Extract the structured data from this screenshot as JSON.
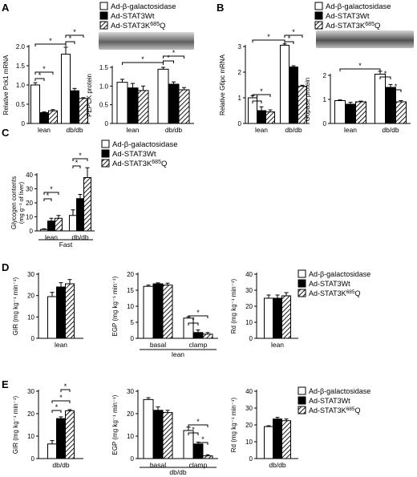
{
  "figure": {
    "legend_entries": [
      "Ad-β-galactosidase",
      "Ad-STAT3Wt",
      "Ad-STAT3K685Q"
    ],
    "legend_base": "Ad-STAT3K",
    "legend_sup": "685",
    "legend_tail": "Q",
    "sig_mark": "*",
    "colors": {
      "series0": "#ffffff",
      "series1": "#000000",
      "series2": "hatch"
    }
  },
  "chart_data": [
    {
      "panel": "A",
      "type": "bar",
      "title": "",
      "ylabel": "Relative Pck1 mRNA",
      "xlabel": "",
      "categories": [
        "lean",
        "db/db"
      ],
      "ylim": [
        0,
        2
      ],
      "yticks": [
        "0",
        "0.5",
        "1.0",
        "1.5",
        "2.0"
      ],
      "series": [
        {
          "name": "Ad-β-galactosidase",
          "values": [
            1.0,
            1.8
          ],
          "errors": [
            0.06,
            0.18
          ]
        },
        {
          "name": "Ad-STAT3Wt",
          "values": [
            0.28,
            0.85
          ],
          "errors": [
            0.02,
            0.06
          ]
        },
        {
          "name": "Ad-STAT3K685Q",
          "values": [
            0.33,
            0.65
          ],
          "errors": [
            0.03,
            0.02
          ]
        }
      ]
    },
    {
      "panel": "A-right",
      "type": "bar",
      "title": "",
      "ylabel": "PEPCK protein",
      "xlabel": "",
      "categories": [
        "lean",
        "db/db"
      ],
      "ylim": [
        0,
        1.5
      ],
      "yticks": [
        "0",
        "0.5",
        "1.0",
        "1.5"
      ],
      "series": [
        {
          "name": "Ad-β-galactosidase",
          "values": [
            1.1,
            1.45
          ],
          "errors": [
            0.08,
            0.05
          ]
        },
        {
          "name": "Ad-STAT3Wt",
          "values": [
            0.95,
            1.05
          ],
          "errors": [
            0.12,
            0.06
          ]
        },
        {
          "name": "Ad-STAT3K685Q",
          "values": [
            0.88,
            0.9
          ],
          "errors": [
            0.12,
            0.06
          ]
        }
      ]
    },
    {
      "panel": "B",
      "type": "bar",
      "title": "",
      "ylabel": "Relative G6pc mRNA",
      "xlabel": "",
      "categories": [
        "lean",
        "db/db"
      ],
      "ylim": [
        0,
        3
      ],
      "yticks": [
        "0",
        "1",
        "2",
        "3"
      ],
      "series": [
        {
          "name": "Ad-β-galactosidase",
          "values": [
            1.0,
            3.05
          ],
          "errors": [
            0.08,
            0.05
          ]
        },
        {
          "name": "Ad-STAT3Wt",
          "values": [
            0.5,
            2.2
          ],
          "errors": [
            0.15,
            0.05
          ]
        },
        {
          "name": "Ad-STAT3K685Q",
          "values": [
            0.45,
            1.45
          ],
          "errors": [
            0.08,
            0.04
          ]
        }
      ]
    },
    {
      "panel": "B-right",
      "type": "bar",
      "title": "",
      "ylabel": "G6pase protein",
      "xlabel": "",
      "categories": [
        "lean",
        "db/db"
      ],
      "ylim": [
        0,
        2
      ],
      "yticks": [
        "0",
        "1",
        "2"
      ],
      "series": [
        {
          "name": "Ad-β-galactosidase",
          "values": [
            0.95,
            2.05
          ],
          "errors": [
            0.03,
            0.12
          ]
        },
        {
          "name": "Ad-STAT3Wt",
          "values": [
            0.8,
            1.5
          ],
          "errors": [
            0.08,
            0.12
          ]
        },
        {
          "name": "Ad-STAT3K685Q",
          "values": [
            0.9,
            0.9
          ],
          "errors": [
            0.03,
            0.05
          ]
        }
      ]
    },
    {
      "panel": "C",
      "type": "bar",
      "title": "",
      "ylabel": "Glycogen contents",
      "ylabel2": "(mg g⁻¹ of liver)",
      "xlabel": "Fast",
      "categories": [
        "lean",
        "db/db"
      ],
      "ylim": [
        0,
        40
      ],
      "yticks": [
        "0",
        "10",
        "20",
        "30",
        "40"
      ],
      "series": [
        {
          "name": "Ad-β-galactosidase",
          "values": [
            1,
            11
          ],
          "errors": [
            0.5,
            4
          ]
        },
        {
          "name": "Ad-STAT3Wt",
          "values": [
            7,
            23
          ],
          "errors": [
            2,
            3
          ]
        },
        {
          "name": "Ad-STAT3K685Q",
          "values": [
            9,
            38
          ],
          "errors": [
            2,
            7
          ]
        }
      ]
    },
    {
      "panel": "D",
      "type": "bar",
      "title": "",
      "ylabel": "GIR (mg kg⁻¹ min⁻¹)",
      "xlabel": "lean",
      "categories": [
        ""
      ],
      "ylim": [
        0,
        30
      ],
      "yticks": [
        "0",
        "10",
        "20",
        "30"
      ],
      "series": [
        {
          "name": "Ad-β-galactosidase",
          "values": [
            19.5
          ],
          "errors": [
            2.0
          ]
        },
        {
          "name": "Ad-STAT3Wt",
          "values": [
            24
          ],
          "errors": [
            2.0
          ]
        },
        {
          "name": "Ad-STAT3K685Q",
          "values": [
            25.5
          ],
          "errors": [
            2.0
          ]
        }
      ]
    },
    {
      "panel": "D-mid",
      "type": "bar",
      "title": "",
      "ylabel": "EGP (mg kg⁻¹ min⁻¹)",
      "xlabel": "lean",
      "categories": [
        "basal",
        "clamp"
      ],
      "ylim": [
        0,
        20
      ],
      "yticks": [
        "0",
        "5",
        "10",
        "15",
        "20"
      ],
      "series": [
        {
          "name": "Ad-β-galactosidase",
          "values": [
            16.2,
            6.3
          ],
          "errors": [
            0.4,
            0.4
          ]
        },
        {
          "name": "Ad-STAT3Wt",
          "values": [
            17,
            1.8
          ],
          "errors": [
            0.3,
            0.8
          ]
        },
        {
          "name": "Ad-STAT3K685Q",
          "values": [
            16.6,
            1.3
          ],
          "errors": [
            0.6,
            0.5
          ]
        }
      ]
    },
    {
      "panel": "D-right",
      "type": "bar",
      "title": "",
      "ylabel": "Rd (mg kg⁻¹ min⁻¹)",
      "xlabel": "lean",
      "categories": [
        ""
      ],
      "ylim": [
        0,
        40
      ],
      "yticks": [
        "0",
        "10",
        "20",
        "30",
        "40"
      ],
      "series": [
        {
          "name": "Ad-β-galactosidase",
          "values": [
            25
          ],
          "errors": [
            2
          ]
        },
        {
          "name": "Ad-STAT3Wt",
          "values": [
            25
          ],
          "errors": [
            2
          ]
        },
        {
          "name": "Ad-STAT3K685Q",
          "values": [
            26.5
          ],
          "errors": [
            2
          ]
        }
      ]
    },
    {
      "panel": "E",
      "type": "bar",
      "title": "",
      "ylabel": "GIR (mg kg⁻¹ min⁻¹)",
      "xlabel": "db/db",
      "categories": [
        ""
      ],
      "ylim": [
        0,
        30
      ],
      "yticks": [
        "0",
        "10",
        "20",
        "30"
      ],
      "series": [
        {
          "name": "Ad-β-galactosidase",
          "values": [
            6.5
          ],
          "errors": [
            1.5
          ]
        },
        {
          "name": "Ad-STAT3Wt",
          "values": [
            17.8
          ],
          "errors": [
            0.8
          ]
        },
        {
          "name": "Ad-STAT3K685Q",
          "values": [
            21.3
          ],
          "errors": [
            0.5
          ]
        }
      ]
    },
    {
      "panel": "E-mid",
      "type": "bar",
      "title": "",
      "ylabel": "EGP (mg kg⁻¹ min⁻¹)",
      "xlabel": "db/db",
      "categories": [
        "basal",
        "clamp"
      ],
      "ylim": [
        0,
        30
      ],
      "yticks": [
        "0",
        "10",
        "20",
        "30"
      ],
      "series": [
        {
          "name": "Ad-β-galactosidase",
          "values": [
            26.3,
            12.5
          ],
          "errors": [
            0.8,
            1.5
          ]
        },
        {
          "name": "Ad-STAT3Wt",
          "values": [
            21.5,
            6.5
          ],
          "errors": [
            1.5,
            0.8
          ]
        },
        {
          "name": "Ad-STAT3K685Q",
          "values": [
            20.5,
            1.2
          ],
          "errors": [
            1.0,
            0.5
          ]
        }
      ]
    },
    {
      "panel": "E-right",
      "type": "bar",
      "title": "",
      "ylabel": "Rd (mg kg⁻¹ min⁻¹)",
      "xlabel": "db/db",
      "categories": [
        ""
      ],
      "ylim": [
        0,
        40
      ],
      "yticks": [
        "0",
        "10",
        "20",
        "30",
        "40"
      ],
      "series": [
        {
          "name": "Ad-β-galactosidase",
          "values": [
            19
          ],
          "errors": [
            0.5
          ]
        },
        {
          "name": "Ad-STAT3Wt",
          "values": [
            23.5
          ],
          "errors": [
            1
          ]
        },
        {
          "name": "Ad-STAT3K685Q",
          "values": [
            22.5
          ],
          "errors": [
            1
          ]
        }
      ]
    }
  ]
}
